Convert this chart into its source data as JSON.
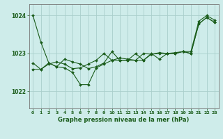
{
  "title": "Graphe pression niveau de la mer (hPa)",
  "background_color": "#ceecea",
  "line_color": "#1a5c1a",
  "grid_color": "#aacfcc",
  "xlim": [
    -0.5,
    23.5
  ],
  "ylim": [
    1021.55,
    1024.3
  ],
  "yticks": [
    1022,
    1023,
    1024
  ],
  "xticks": [
    0,
    1,
    2,
    3,
    4,
    5,
    6,
    7,
    8,
    9,
    10,
    11,
    12,
    13,
    14,
    15,
    16,
    17,
    18,
    19,
    20,
    21,
    22,
    23
  ],
  "series": [
    [
      1024.0,
      1023.3,
      1022.75,
      1022.65,
      1022.85,
      1022.78,
      1022.72,
      1022.6,
      1022.65,
      1022.75,
      1023.05,
      1022.82,
      1022.82,
      1022.82,
      1022.82,
      1023.0,
      1022.85,
      1023.0,
      1023.0,
      1023.05,
      1023.0,
      1023.78,
      1023.95,
      1023.82
    ],
    [
      1022.75,
      1022.58,
      1022.75,
      1022.65,
      1022.62,
      1022.5,
      1022.18,
      1022.18,
      1022.62,
      1022.72,
      1022.82,
      1022.82,
      1022.82,
      1023.0,
      1022.82,
      1022.98,
      1023.0,
      1023.0,
      1023.0,
      1023.05,
      1023.0,
      1023.78,
      1023.95,
      1023.82
    ],
    [
      1022.58,
      1022.58,
      1022.72,
      1022.78,
      1022.72,
      1022.6,
      1022.62,
      1022.72,
      1022.82,
      1023.0,
      1022.82,
      1022.88,
      1022.85,
      1022.82,
      1023.0,
      1022.98,
      1023.02,
      1023.0,
      1023.02,
      1023.05,
      1023.05,
      1023.85,
      1024.0,
      1023.88
    ]
  ]
}
